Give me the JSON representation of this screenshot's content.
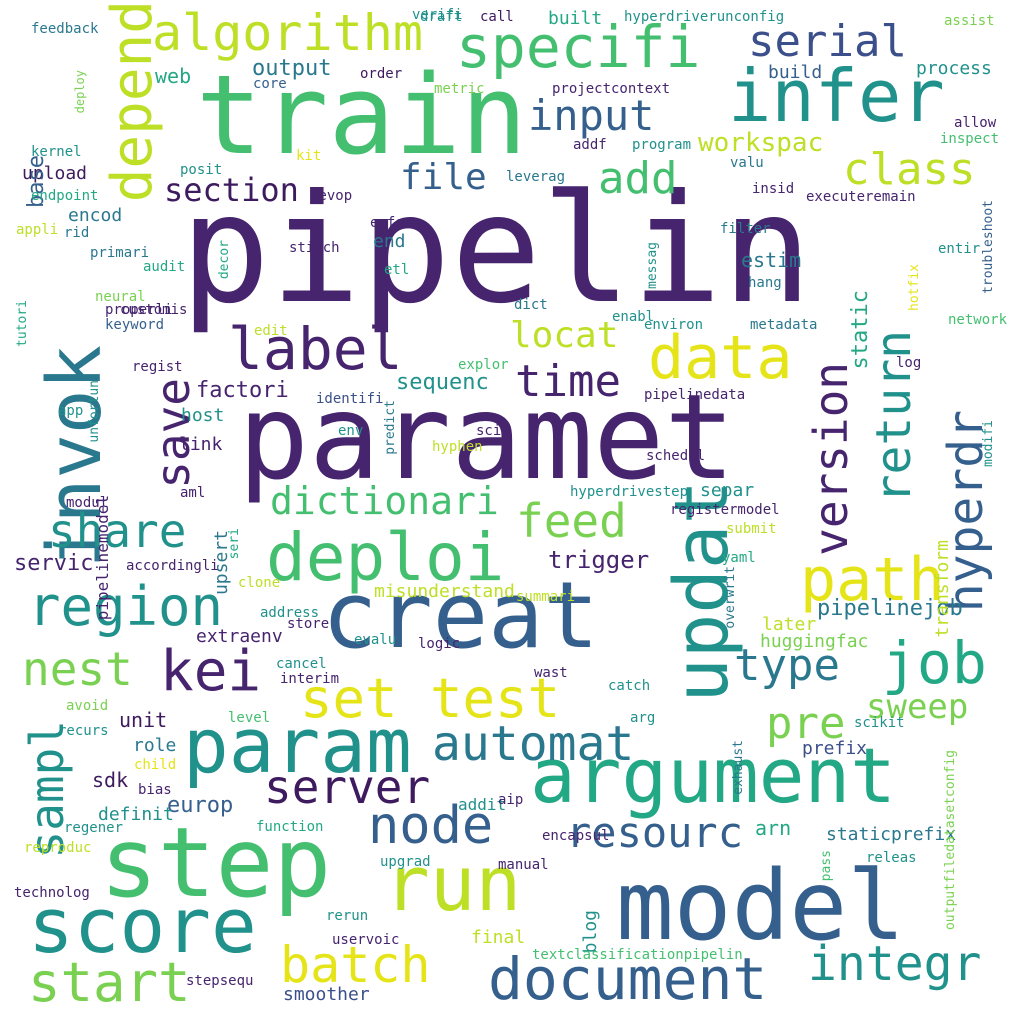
{
  "palette": {
    "dark_purple": "#46246e",
    "indigo": "#3b4f8a",
    "blue": "#355f8d",
    "steel": "#2a788e",
    "teal": "#21918c",
    "green_teal": "#22a884",
    "green": "#44bf70",
    "light_green": "#7ad151",
    "lime": "#bddf26",
    "yellow": "#e5e419",
    "dark_navy": "#3e1a5e"
  },
  "words": [
    {
      "text": "pipelin",
      "size": 150,
      "color": "dark_purple"
    },
    {
      "text": "paramet",
      "size": 118,
      "color": "dark_purple"
    },
    {
      "text": "train",
      "size": 110,
      "color": "green"
    },
    {
      "text": "model",
      "size": 96,
      "color": "blue"
    },
    {
      "text": "step",
      "size": 96,
      "color": "green"
    },
    {
      "text": "creat",
      "size": 92,
      "color": "blue"
    },
    {
      "text": "argument",
      "size": 76,
      "color": "green_teal"
    },
    {
      "text": "param",
      "size": 76,
      "color": "teal"
    },
    {
      "text": "score",
      "size": 76,
      "color": "teal"
    },
    {
      "text": "run",
      "size": 76,
      "color": "lime"
    },
    {
      "text": "updat",
      "size": 74,
      "color": "teal",
      "rotate": -90
    },
    {
      "text": "invok",
      "size": 74,
      "color": "steel",
      "rotate": -90
    },
    {
      "text": "infer",
      "size": 72,
      "color": "teal"
    },
    {
      "text": "deploi",
      "size": 66,
      "color": "green"
    },
    {
      "text": "data",
      "size": 60,
      "color": "yellow"
    },
    {
      "text": "path",
      "size": 60,
      "color": "yellow"
    },
    {
      "text": "specifi",
      "size": 58,
      "color": "green"
    },
    {
      "text": "job",
      "size": 58,
      "color": "green_teal"
    },
    {
      "text": "document",
      "size": 58,
      "color": "blue"
    },
    {
      "text": "label",
      "size": 58,
      "color": "dark_purple"
    },
    {
      "text": "kei",
      "size": 56,
      "color": "dark_purple"
    },
    {
      "text": "depend",
      "size": 56,
      "color": "lime",
      "rotate": -90
    },
    {
      "text": "region",
      "size": 54,
      "color": "teal"
    },
    {
      "text": "start",
      "size": 54,
      "color": "light_green"
    },
    {
      "text": "set test",
      "size": 54,
      "color": "yellow"
    },
    {
      "text": "node",
      "size": 52,
      "color": "blue"
    },
    {
      "text": "algorithm",
      "size": 50,
      "color": "lime"
    },
    {
      "text": "batch",
      "size": 50,
      "color": "yellow"
    },
    {
      "text": "automat",
      "size": 48,
      "color": "steel"
    },
    {
      "text": "integr",
      "size": 48,
      "color": "teal"
    },
    {
      "text": "hyperdr",
      "size": 48,
      "color": "blue",
      "rotate": -90
    },
    {
      "text": "return",
      "size": 48,
      "color": "teal",
      "rotate": -90
    },
    {
      "text": "version",
      "size": 46,
      "color": "dark_purple",
      "rotate": -90
    },
    {
      "text": "server",
      "size": 46,
      "color": "dark_navy"
    },
    {
      "text": "nest",
      "size": 46,
      "color": "light_green"
    },
    {
      "text": "share",
      "size": 46,
      "color": "teal"
    },
    {
      "text": "save",
      "size": 46,
      "color": "dark_purple",
      "rotate": -90
    },
    {
      "text": "feed",
      "size": 46,
      "color": "light_green"
    },
    {
      "text": "sampl",
      "size": 46,
      "color": "teal",
      "rotate": -90
    },
    {
      "text": "time",
      "size": 44,
      "color": "dark_purple"
    },
    {
      "text": "pre",
      "size": 44,
      "color": "light_green"
    },
    {
      "text": "serial",
      "size": 44,
      "color": "indigo"
    },
    {
      "text": "type",
      "size": 44,
      "color": "steel"
    },
    {
      "text": "class",
      "size": 44,
      "color": "lime"
    },
    {
      "text": "add",
      "size": 44,
      "color": "green"
    },
    {
      "text": "input",
      "size": 42,
      "color": "blue"
    },
    {
      "text": "resourc",
      "size": 42,
      "color": "blue"
    },
    {
      "text": "dictionari",
      "size": 38,
      "color": "green"
    },
    {
      "text": "locat",
      "size": 36,
      "color": "lime"
    },
    {
      "text": "file",
      "size": 36,
      "color": "blue"
    },
    {
      "text": "sweep",
      "size": 34,
      "color": "light_green"
    },
    {
      "text": "section",
      "size": 32,
      "color": "dark_navy"
    },
    {
      "text": "workspac",
      "size": 26,
      "color": "lime"
    },
    {
      "text": "trigger",
      "size": 24,
      "color": "dark_purple"
    },
    {
      "text": "europ",
      "size": 22,
      "color": "blue"
    },
    {
      "text": "factori",
      "size": 22,
      "color": "dark_purple"
    },
    {
      "text": "pipelinejob",
      "size": 22,
      "color": "steel"
    },
    {
      "text": "sequenc",
      "size": 22,
      "color": "teal"
    },
    {
      "text": "output",
      "size": 22,
      "color": "steel"
    },
    {
      "text": "servic",
      "size": 22,
      "color": "dark_purple"
    },
    {
      "text": "unit",
      "size": 20,
      "color": "dark_navy"
    },
    {
      "text": "sdk",
      "size": 20,
      "color": "dark_navy"
    },
    {
      "text": "arn",
      "size": 20,
      "color": "green_teal"
    },
    {
      "text": "estim",
      "size": 20,
      "color": "steel"
    },
    {
      "text": "staticprefix",
      "size": 18,
      "color": "steel"
    },
    {
      "text": "web",
      "size": 20,
      "color": "green_teal"
    },
    {
      "text": "process",
      "size": 18,
      "color": "teal"
    },
    {
      "text": "role",
      "size": 18,
      "color": "steel"
    },
    {
      "text": "prefix",
      "size": 18,
      "color": "indigo"
    },
    {
      "text": "extraenv",
      "size": 18,
      "color": "dark_purple"
    },
    {
      "text": "host",
      "size": 18,
      "color": "teal"
    },
    {
      "text": "link",
      "size": 18,
      "color": "dark_purple"
    },
    {
      "text": "smoother",
      "size": 18,
      "color": "indigo"
    },
    {
      "text": "huggingfac",
      "size": 18,
      "color": "light_green"
    },
    {
      "text": "misunderstand",
      "size": 18,
      "color": "lime"
    },
    {
      "text": "definit",
      "size": 18,
      "color": "teal"
    },
    {
      "text": "final",
      "size": 18,
      "color": "lime"
    },
    {
      "text": "separ",
      "size": 18,
      "color": "teal"
    },
    {
      "text": "upload",
      "size": 18,
      "color": "dark_navy"
    },
    {
      "text": "encod",
      "size": 18,
      "color": "steel"
    },
    {
      "text": "later",
      "size": 18,
      "color": "lime"
    },
    {
      "text": "end",
      "size": 18,
      "color": "steel"
    },
    {
      "text": "build",
      "size": 18,
      "color": "blue"
    },
    {
      "text": "built",
      "size": 18,
      "color": "green_teal"
    },
    {
      "text": "base",
      "size": 22,
      "color": "blue",
      "rotate": -90
    },
    {
      "text": "static",
      "size": 22,
      "color": "green_teal",
      "rotate": -90
    },
    {
      "text": "transform",
      "size": 18,
      "color": "lime",
      "rotate": -90
    },
    {
      "text": "upsert",
      "size": 18,
      "color": "steel",
      "rotate": -90
    },
    {
      "text": "pipelinemodel",
      "size": 16,
      "color": "dark_purple",
      "rotate": -90
    },
    {
      "text": "blog",
      "size": 18,
      "color": "teal",
      "rotate": -90
    },
    {
      "text": "addit",
      "size": 16,
      "color": "teal"
    },
    {
      "text": "upgrad",
      "size": 14,
      "color": "teal"
    },
    {
      "text": "call",
      "size": 14,
      "color": "dark_navy"
    },
    {
      "text": "draft",
      "size": 14,
      "color": "teal"
    },
    {
      "text": "verifi",
      "size": 14,
      "color": "teal"
    },
    {
      "text": "feedback",
      "size": 14,
      "color": "steel"
    },
    {
      "text": "hyperdriverunconfig",
      "size": 14,
      "color": "teal"
    },
    {
      "text": "assist",
      "size": 14,
      "color": "light_green"
    },
    {
      "text": "order",
      "size": 14,
      "color": "dark_navy"
    },
    {
      "text": "core",
      "size": 14,
      "color": "blue"
    },
    {
      "text": "metric",
      "size": 14,
      "color": "light_green"
    },
    {
      "text": "projectcontext",
      "size": 14,
      "color": "dark_purple"
    },
    {
      "text": "allow",
      "size": 14,
      "color": "dark_purple"
    },
    {
      "text": "inspect",
      "size": 14,
      "color": "green"
    },
    {
      "text": "kernel",
      "size": 14,
      "color": "teal"
    },
    {
      "text": "posit",
      "size": 14,
      "color": "teal"
    },
    {
      "text": "kit",
      "size": 14,
      "color": "yellow"
    },
    {
      "text": "addf",
      "size": 14,
      "color": "dark_purple"
    },
    {
      "text": "program",
      "size": 14,
      "color": "teal"
    },
    {
      "text": "valu",
      "size": 14,
      "color": "steel"
    },
    {
      "text": "endpoint",
      "size": 14,
      "color": "green_teal"
    },
    {
      "text": "devop",
      "size": 14,
      "color": "dark_purple"
    },
    {
      "text": "leverag",
      "size": 14,
      "color": "steel"
    },
    {
      "text": "insid",
      "size": 14,
      "color": "dark_purple"
    },
    {
      "text": "executeremain",
      "size": 14,
      "color": "dark_purple"
    },
    {
      "text": "appli",
      "size": 14,
      "color": "lime"
    },
    {
      "text": "rid",
      "size": 14,
      "color": "steel"
    },
    {
      "text": "enforc",
      "size": 14,
      "color": "dark_purple"
    },
    {
      "text": "filter",
      "size": 14,
      "color": "steel"
    },
    {
      "text": "entir",
      "size": 14,
      "color": "teal"
    },
    {
      "text": "primari",
      "size": 14,
      "color": "steel"
    },
    {
      "text": "stitch",
      "size": 14,
      "color": "dark_purple"
    },
    {
      "text": "audit",
      "size": 14,
      "color": "green_teal"
    },
    {
      "text": "etl",
      "size": 14,
      "color": "green_teal"
    },
    {
      "text": "hang",
      "size": 14,
      "color": "steel"
    },
    {
      "text": "neural",
      "size": 14,
      "color": "light_green"
    },
    {
      "text": "properli",
      "size": 14,
      "color": "dark_purple"
    },
    {
      "text": "customis",
      "size": 14,
      "color": "dark_purple"
    },
    {
      "text": "dict",
      "size": 14,
      "color": "steel"
    },
    {
      "text": "enabl",
      "size": 14,
      "color": "teal"
    },
    {
      "text": "network",
      "size": 14,
      "color": "green"
    },
    {
      "text": "keyword",
      "size": 14,
      "color": "blue"
    },
    {
      "text": "edit",
      "size": 14,
      "color": "lime"
    },
    {
      "text": "environ",
      "size": 14,
      "color": "teal"
    },
    {
      "text": "metadata",
      "size": 14,
      "color": "steel"
    },
    {
      "text": "regist",
      "size": 14,
      "color": "dark_purple"
    },
    {
      "text": "explor",
      "size": 14,
      "color": "green"
    },
    {
      "text": "log",
      "size": 14,
      "color": "dark_purple"
    },
    {
      "text": "identifi",
      "size": 14,
      "color": "indigo"
    },
    {
      "text": "pipelinedata",
      "size": 14,
      "color": "dark_purple"
    },
    {
      "text": "app",
      "size": 14,
      "color": "teal"
    },
    {
      "text": "env",
      "size": 14,
      "color": "teal"
    },
    {
      "text": "sci",
      "size": 14,
      "color": "dark_purple"
    },
    {
      "text": "hyphen",
      "size": 14,
      "color": "lime"
    },
    {
      "text": "schedul",
      "size": 14,
      "color": "dark_purple"
    },
    {
      "text": "aml",
      "size": 14,
      "color": "dark_purple"
    },
    {
      "text": "hyperdrivestep",
      "size": 14,
      "color": "teal"
    },
    {
      "text": "modul",
      "size": 14,
      "color": "dark_purple"
    },
    {
      "text": "registermodel",
      "size": 14,
      "color": "dark_purple"
    },
    {
      "text": "submit",
      "size": 14,
      "color": "lime"
    },
    {
      "text": "yaml",
      "size": 14,
      "color": "green_teal"
    },
    {
      "text": "accordingli",
      "size": 14,
      "color": "dark_purple"
    },
    {
      "text": "clone",
      "size": 14,
      "color": "lime"
    },
    {
      "text": "summari",
      "size": 14,
      "color": "lime"
    },
    {
      "text": "address",
      "size": 14,
      "color": "teal"
    },
    {
      "text": "store",
      "size": 14,
      "color": "dark_purple"
    },
    {
      "text": "evalu",
      "size": 14,
      "color": "teal"
    },
    {
      "text": "logic",
      "size": 14,
      "color": "dark_purple"
    },
    {
      "text": "cancel",
      "size": 14,
      "color": "teal"
    },
    {
      "text": "interim",
      "size": 14,
      "color": "dark_purple"
    },
    {
      "text": "wast",
      "size": 14,
      "color": "dark_purple"
    },
    {
      "text": "catch",
      "size": 14,
      "color": "teal"
    },
    {
      "text": "avoid",
      "size": 14,
      "color": "light_green"
    },
    {
      "text": "level",
      "size": 14,
      "color": "green"
    },
    {
      "text": "arg",
      "size": 14,
      "color": "teal"
    },
    {
      "text": "recurs",
      "size": 14,
      "color": "teal"
    },
    {
      "text": "scikit",
      "size": 14,
      "color": "teal"
    },
    {
      "text": "child",
      "size": 14,
      "color": "yellow"
    },
    {
      "text": "bias",
      "size": 14,
      "color": "dark_purple"
    },
    {
      "text": "aip",
      "size": 14,
      "color": "dark_purple"
    },
    {
      "text": "regener",
      "size": 14,
      "color": "teal"
    },
    {
      "text": "function",
      "size": 14,
      "color": "green_teal"
    },
    {
      "text": "encapsul",
      "size": 14,
      "color": "dark_purple"
    },
    {
      "text": "reproduc",
      "size": 14,
      "color": "lime"
    },
    {
      "text": "manual",
      "size": 14,
      "color": "dark_purple"
    },
    {
      "text": "releas",
      "size": 14,
      "color": "teal"
    },
    {
      "text": "technolog",
      "size": 14,
      "color": "dark_purple"
    },
    {
      "text": "rerun",
      "size": 14,
      "color": "teal"
    },
    {
      "text": "uservoic",
      "size": 14,
      "color": "dark_purple"
    },
    {
      "text": "textclassificationpipelin",
      "size": 14,
      "color": "green"
    },
    {
      "text": "stepsequ",
      "size": 14,
      "color": "dark_purple"
    },
    {
      "text": "deploy",
      "size": 12,
      "color": "light_green",
      "rotate": -90
    },
    {
      "text": "troubleshoot",
      "size": 13,
      "color": "blue",
      "rotate": -90
    },
    {
      "text": "hotfix",
      "size": 13,
      "color": "yellow",
      "rotate": -90
    },
    {
      "text": "messag",
      "size": 13,
      "color": "teal",
      "rotate": -90
    },
    {
      "text": "decor",
      "size": 13,
      "color": "green_teal",
      "rotate": -90
    },
    {
      "text": "tutori",
      "size": 13,
      "color": "green_teal",
      "rotate": -90
    },
    {
      "text": "unfortun",
      "size": 13,
      "color": "teal",
      "rotate": -90
    },
    {
      "text": "predict",
      "size": 13,
      "color": "steel",
      "rotate": -90
    },
    {
      "text": "modifi",
      "size": 13,
      "color": "teal",
      "rotate": -90
    },
    {
      "text": "seri",
      "size": 13,
      "color": "green_teal",
      "rotate": -90
    },
    {
      "text": "overwrit",
      "size": 13,
      "color": "steel",
      "rotate": -90
    },
    {
      "text": "exhaust",
      "size": 13,
      "color": "steel",
      "rotate": -90
    },
    {
      "text": "outputfiledatasetconfig",
      "size": 13,
      "color": "light_green",
      "rotate": -90
    },
    {
      "text": "pass",
      "size": 13,
      "color": "green",
      "rotate": -90
    },
    {
      "text": "predefin",
      "size": 13,
      "color": "green_teal",
      "rotate": -90
    },
    {
      "text": "artifici",
      "size": 13,
      "color": "steel",
      "rotate": -90
    }
  ]
}
